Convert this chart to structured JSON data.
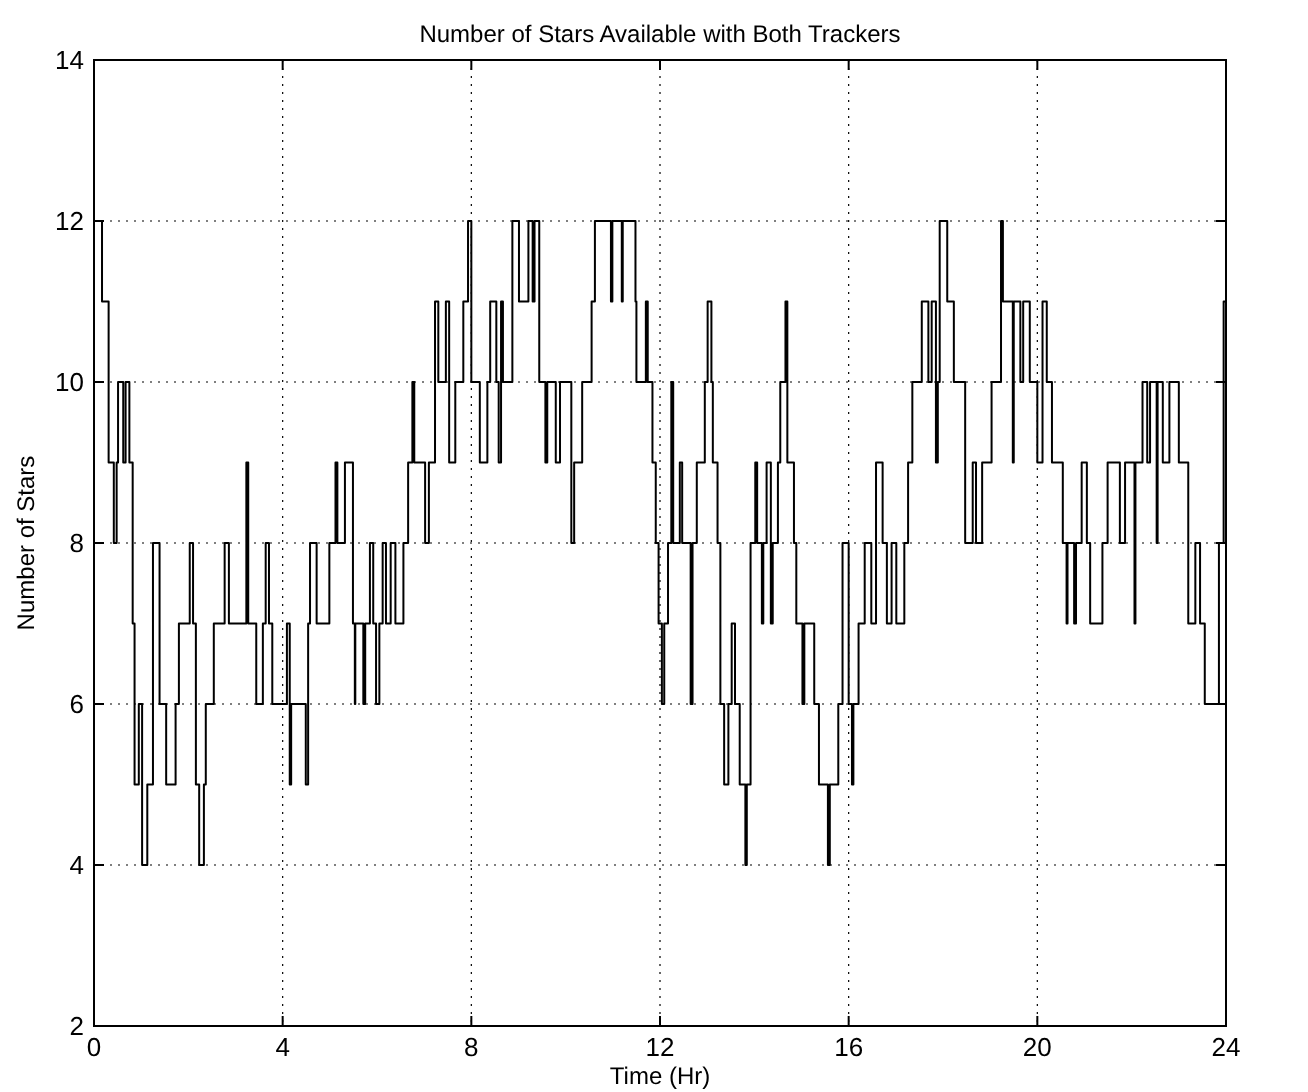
{
  "chart_data": {
    "type": "step",
    "title": "Number of Stars Available with Both Trackers",
    "xlabel": "Time (Hr)",
    "ylabel": "Number of Stars",
    "xlim": [
      0,
      24
    ],
    "ylim": [
      2,
      14
    ],
    "xticks": [
      0,
      4,
      8,
      12,
      16,
      20,
      24
    ],
    "yticks": [
      2,
      4,
      6,
      8,
      10,
      12,
      14
    ],
    "grid": true,
    "line_style": "solid",
    "series": [
      {
        "color": "#000000",
        "x": [
          0,
          0.17,
          0.31,
          0.42,
          0.48,
          0.51,
          0.62,
          0.67,
          0.75,
          0.82,
          0.86,
          0.95,
          1.02,
          1.13,
          1.25,
          1.39,
          1.53,
          1.73,
          1.8,
          2.03,
          2.1,
          2.16,
          2.23,
          2.33,
          2.37,
          2.54,
          2.77,
          2.86,
          3.23,
          3.27,
          3.44,
          3.58,
          3.64,
          3.71,
          3.78,
          4.09,
          4.15,
          4.18,
          4.49,
          4.54,
          4.58,
          4.72,
          4.99,
          5.12,
          5.16,
          5.32,
          5.49,
          5.53,
          5.54,
          5.71,
          5.75,
          5.85,
          5.92,
          5.98,
          6.05,
          6.12,
          6.19,
          6.29,
          6.39,
          6.56,
          6.66,
          6.75,
          6.79,
          7.02,
          7.1,
          7.23,
          7.3,
          7.46,
          7.53,
          7.66,
          7.83,
          7.93,
          8,
          8.18,
          8.34,
          8.4,
          8.53,
          8.58,
          8.63,
          8.67,
          8.87,
          9.01,
          9.21,
          9.3,
          9.34,
          9.44,
          9.57,
          9.61,
          9.79,
          9.88,
          10.12,
          10.18,
          10.35,
          10.55,
          10.62,
          10.96,
          10.99,
          11.19,
          11.21,
          11.48,
          11.5,
          11.7,
          11.74,
          11.84,
          11.91,
          11.97,
          12.04,
          12.09,
          12.17,
          12.24,
          12.28,
          12.42,
          12.47,
          12.65,
          12.69,
          12.78,
          12.95,
          13.01,
          13.09,
          13.12,
          13.22,
          13.28,
          13.36,
          13.45,
          13.52,
          13.59,
          13.69,
          13.81,
          13.84,
          13.92,
          14.02,
          14.06,
          14.16,
          14.19,
          14.26,
          14.35,
          14.39,
          14.5,
          14.55,
          14.66,
          14.7,
          14.84,
          14.89,
          15.02,
          15.06,
          15.27,
          15.37,
          15.56,
          15.6,
          15.78,
          15.87,
          16,
          16.07,
          16.1,
          16.21,
          16.34,
          16.48,
          16.58,
          16.72,
          16.81,
          16.91,
          17.01,
          17.08,
          17.18,
          17.26,
          17.35,
          17.55,
          17.69,
          17.76,
          17.85,
          17.89,
          17.93,
          18.09,
          18.23,
          18.47,
          18.63,
          18.7,
          18.83,
          19.03,
          19.23,
          19.27,
          19.48,
          19.5,
          19.64,
          19.7,
          19.84,
          20,
          20.11,
          20.2,
          20.31,
          20.54,
          20.62,
          20.64,
          20.78,
          20.82,
          20.94,
          21.05,
          21.12,
          21.38,
          21.49,
          21.75,
          21.86,
          22.06,
          22.08,
          22.23,
          22.33,
          22.39,
          22.53,
          22.55,
          22.66,
          22.8,
          23,
          23.2,
          23.35,
          23.45,
          23.55,
          23.85,
          23.95,
          24
        ],
        "values": [
          12,
          11,
          9,
          8,
          9,
          10,
          9,
          10,
          9,
          7,
          5,
          6,
          4,
          5,
          8,
          6,
          5,
          6,
          7,
          8,
          7,
          5,
          4,
          5,
          6,
          7,
          8,
          7,
          9,
          7,
          6,
          7,
          8,
          7,
          6,
          7,
          5,
          6,
          5,
          7,
          8,
          7,
          8,
          9,
          8,
          9,
          7,
          6,
          7,
          6,
          7,
          8,
          7,
          6,
          7,
          8,
          7,
          8,
          7,
          8,
          9,
          10,
          9,
          8,
          9,
          11,
          10,
          11,
          9,
          10,
          11,
          12,
          10,
          9,
          10,
          11,
          10,
          9,
          11,
          10,
          12,
          11,
          12,
          11,
          12,
          10,
          9,
          10,
          9,
          10,
          8,
          9,
          10,
          11,
          12,
          11,
          12,
          11,
          12,
          11,
          10,
          11,
          10,
          9,
          8,
          7,
          6,
          7,
          8,
          10,
          8,
          9,
          8,
          6,
          8,
          9,
          10,
          11,
          10,
          9,
          8,
          6,
          5,
          6,
          7,
          6,
          5,
          4,
          5,
          8,
          9,
          8,
          7,
          8,
          9,
          7,
          8,
          9,
          10,
          11,
          9,
          8,
          7,
          6,
          7,
          6,
          5,
          4,
          5,
          6,
          8,
          6,
          5,
          6,
          7,
          8,
          7,
          9,
          8,
          7,
          8,
          7,
          7,
          8,
          9,
          10,
          11,
          10,
          11,
          9,
          10,
          12,
          11,
          10,
          8,
          9,
          8,
          9,
          10,
          12,
          11,
          9,
          11,
          10,
          11,
          10,
          9,
          11,
          10,
          9,
          8,
          7,
          8,
          7,
          8,
          9,
          8,
          7,
          8,
          9,
          8,
          9,
          7,
          9,
          10,
          9,
          10,
          8,
          10,
          9,
          10,
          9,
          7,
          8,
          7,
          6,
          8,
          11,
          11
        ]
      }
    ]
  }
}
